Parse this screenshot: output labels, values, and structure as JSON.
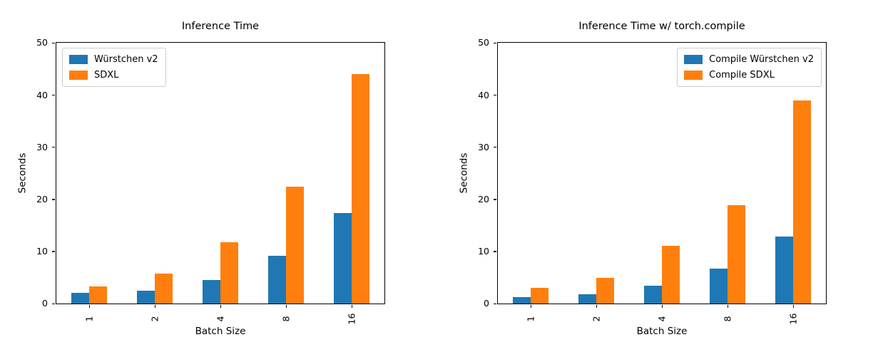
{
  "figure": {
    "background": "#ffffff",
    "bar_colors": {
      "blue": "#1f77b4",
      "orange": "#ff7f0e"
    }
  },
  "chart_data": [
    {
      "type": "bar",
      "title": "Inference Time",
      "xlabel": "Batch Size",
      "ylabel": "Seconds",
      "categories": [
        "1",
        "2",
        "4",
        "8",
        "16"
      ],
      "series": [
        {
          "name": "Würstchen v2",
          "color": "#1f77b4",
          "values": [
            2.0,
            2.4,
            4.5,
            9.1,
            17.4
          ]
        },
        {
          "name": "SDXL",
          "color": "#ff7f0e",
          "values": [
            3.3,
            5.8,
            11.7,
            22.4,
            44.0
          ]
        }
      ],
      "ylim": [
        0,
        50
      ],
      "yticks": [
        0,
        10,
        20,
        30,
        40,
        50
      ],
      "grid": false,
      "legend_position": "upper-left"
    },
    {
      "type": "bar",
      "title": "Inference Time w/ torch.compile",
      "xlabel": "Batch Size",
      "ylabel": "Seconds",
      "categories": [
        "1",
        "2",
        "4",
        "8",
        "16"
      ],
      "series": [
        {
          "name": "Compile Würstchen v2",
          "color": "#1f77b4",
          "values": [
            1.2,
            1.8,
            3.4,
            6.7,
            12.9
          ]
        },
        {
          "name": "Compile SDXL",
          "color": "#ff7f0e",
          "values": [
            3.0,
            4.9,
            11.0,
            18.9,
            39.0
          ]
        }
      ],
      "ylim": [
        0,
        50
      ],
      "yticks": [
        0,
        10,
        20,
        30,
        40,
        50
      ],
      "grid": false,
      "legend_position": "upper-right"
    }
  ]
}
